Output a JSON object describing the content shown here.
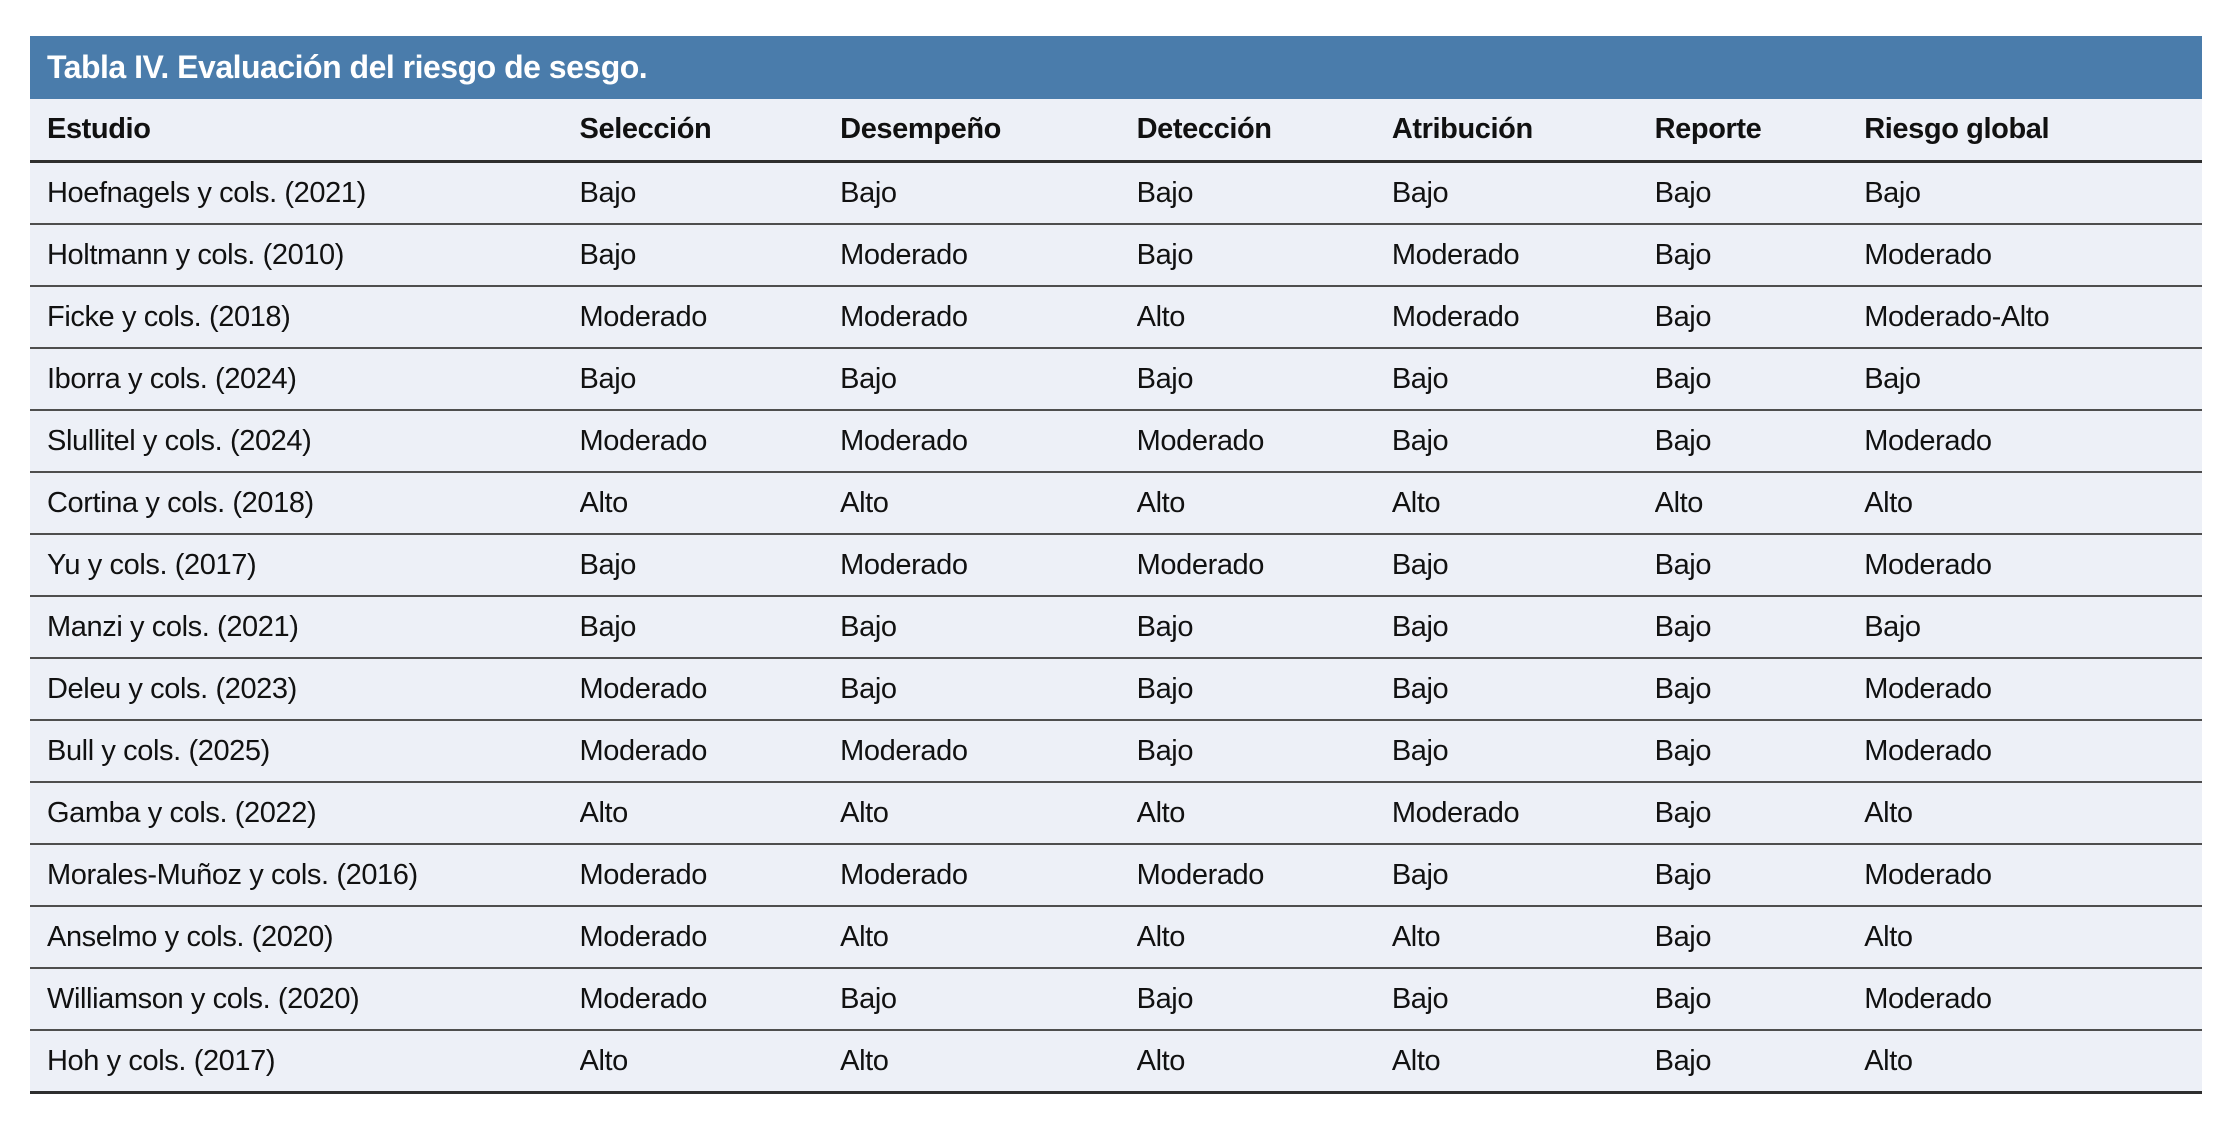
{
  "table": {
    "title": "Tabla IV. Evaluación del riesgo de sesgo.",
    "columns": [
      "Estudio",
      "Selección",
      "Desempeño",
      "Detección",
      "Atribución",
      "Reporte",
      "Riesgo global"
    ],
    "rows": [
      [
        "Hoefnagels y cols. (2021)",
        "Bajo",
        "Bajo",
        "Bajo",
        "Bajo",
        "Bajo",
        "Bajo"
      ],
      [
        "Holtmann y cols. (2010)",
        "Bajo",
        "Moderado",
        "Bajo",
        "Moderado",
        "Bajo",
        "Moderado"
      ],
      [
        "Ficke y cols. (2018)",
        "Moderado",
        "Moderado",
        "Alto",
        "Moderado",
        "Bajo",
        "Moderado-Alto"
      ],
      [
        "Iborra y cols. (2024)",
        "Bajo",
        "Bajo",
        "Bajo",
        "Bajo",
        "Bajo",
        "Bajo"
      ],
      [
        "Slullitel y cols. (2024)",
        "Moderado",
        "Moderado",
        "Moderado",
        "Bajo",
        "Bajo",
        "Moderado"
      ],
      [
        "Cortina y cols. (2018)",
        "Alto",
        "Alto",
        "Alto",
        "Alto",
        "Alto",
        "Alto"
      ],
      [
        "Yu y cols. (2017)",
        "Bajo",
        "Moderado",
        "Moderado",
        "Bajo",
        "Bajo",
        "Moderado"
      ],
      [
        "Manzi y cols. (2021)",
        "Bajo",
        "Bajo",
        "Bajo",
        "Bajo",
        "Bajo",
        "Bajo"
      ],
      [
        "Deleu y cols. (2023)",
        "Moderado",
        "Bajo",
        "Bajo",
        "Bajo",
        "Bajo",
        "Moderado"
      ],
      [
        "Bull y cols. (2025)",
        "Moderado",
        "Moderado",
        "Bajo",
        "Bajo",
        "Bajo",
        "Moderado"
      ],
      [
        "Gamba y cols. (2022)",
        "Alto",
        "Alto",
        "Alto",
        "Moderado",
        "Bajo",
        "Alto"
      ],
      [
        "Morales-Muñoz y cols. (2016)",
        "Moderado",
        "Moderado",
        "Moderado",
        "Bajo",
        "Bajo",
        "Moderado"
      ],
      [
        "Anselmo y cols. (2020)",
        "Moderado",
        "Alto",
        "Alto",
        "Alto",
        "Bajo",
        "Alto"
      ],
      [
        "Williamson y cols. (2020)",
        "Moderado",
        "Bajo",
        "Bajo",
        "Bajo",
        "Bajo",
        "Moderado"
      ],
      [
        "Hoh y cols. (2017)",
        "Alto",
        "Alto",
        "Alto",
        "Alto",
        "Bajo",
        "Alto"
      ]
    ],
    "colors": {
      "header_bg": "#4a7cab",
      "header_text": "#ffffff",
      "body_bg": "#edf0f7",
      "text": "#111111",
      "line": "#4e4e4e",
      "line_strong": "#2e2e2e"
    }
  }
}
